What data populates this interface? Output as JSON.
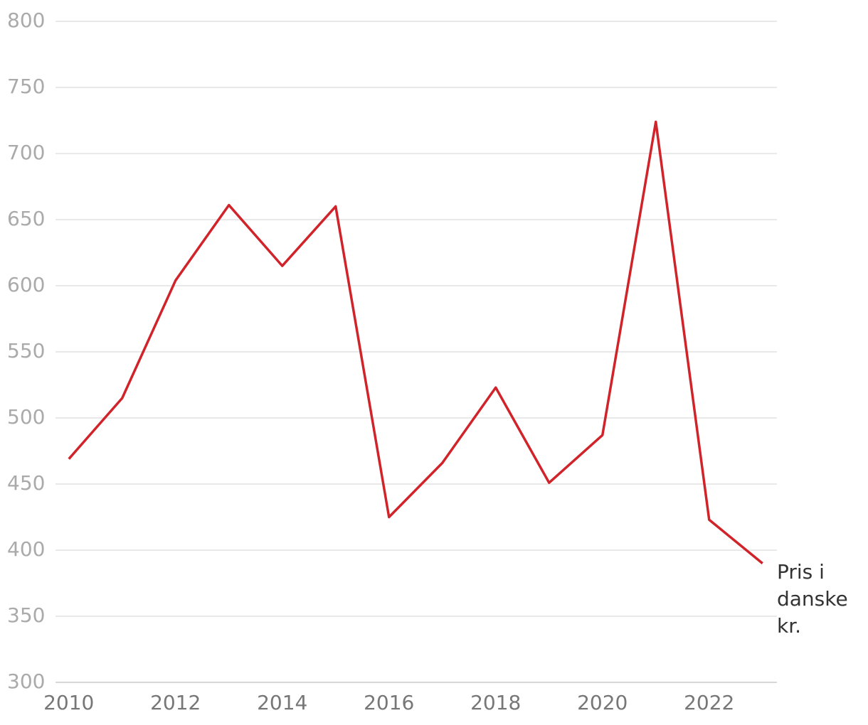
{
  "chart_data": {
    "type": "line",
    "x": [
      2010,
      2011,
      2012,
      2013,
      2014,
      2015,
      2016,
      2017,
      2018,
      2019,
      2020,
      2021,
      2022,
      2023
    ],
    "values": [
      469,
      515,
      604,
      661,
      615,
      660,
      425,
      466,
      523,
      451,
      487,
      724,
      423,
      390
    ],
    "color": "#d0232a",
    "annotation": "Pris i danske kr.",
    "xlim": [
      2009.75,
      2023.27
    ],
    "xticks": [
      2010,
      2012,
      2014,
      2016,
      2018,
      2020,
      2022
    ],
    "ylim": [
      300,
      800
    ],
    "yticks": [
      300,
      350,
      400,
      450,
      500,
      550,
      600,
      650,
      700,
      750,
      800
    ],
    "grid": true
  }
}
